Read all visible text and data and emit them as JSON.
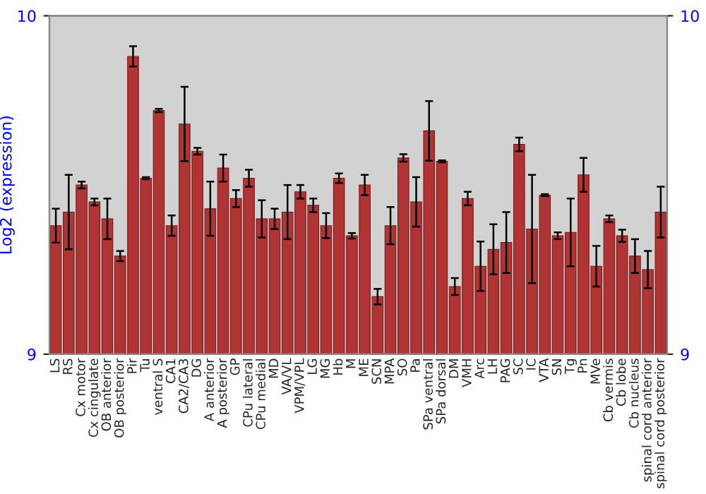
{
  "chart_data": {
    "type": "bar",
    "ylabel": "Log2 (expression)",
    "categories": [
      "LS",
      "RS",
      "Cx motor",
      "Cx cingulate",
      "OB anterior",
      "OB posterior",
      "Pir",
      "Tu",
      "ventral S",
      "CA1",
      "CA2/CA3",
      "DG",
      "A anterior",
      "A posterior",
      "GP",
      "CPu lateral",
      "CPu medial",
      "MD",
      "VA/VL",
      "VPM/VPL",
      "LG",
      "MG",
      "Hb",
      "M",
      "ME",
      "SCN",
      "MPA",
      "SO",
      "Pa",
      "SPa ventral",
      "SPa dorsal",
      "DM",
      "VMH",
      "Arc",
      "LH",
      "PAG",
      "SC",
      "IC",
      "VTA",
      "SN",
      "Tg",
      "Pn",
      "MVe",
      "Cb vermis",
      "Cb lobe",
      "Cb nucleus",
      "spinal cord anterior",
      "spinal cord posterior"
    ],
    "values": [
      9.38,
      9.42,
      9.5,
      9.45,
      9.4,
      9.29,
      9.88,
      9.52,
      9.72,
      9.38,
      9.68,
      9.6,
      9.43,
      9.55,
      9.46,
      9.52,
      9.4,
      9.4,
      9.42,
      9.48,
      9.44,
      9.38,
      9.52,
      9.35,
      9.5,
      9.17,
      9.38,
      9.58,
      9.45,
      9.66,
      9.57,
      9.2,
      9.46,
      9.26,
      9.31,
      9.33,
      9.62,
      9.37,
      9.47,
      9.35,
      9.36,
      9.53,
      9.26,
      9.4,
      9.35,
      9.29,
      9.25,
      9.42
    ],
    "errors": [
      0.05,
      0.11,
      0.01,
      0.01,
      0.06,
      0.015,
      0.03,
      0.003,
      0.005,
      0.03,
      0.11,
      0.01,
      0.08,
      0.04,
      0.025,
      0.025,
      0.055,
      0.03,
      0.08,
      0.02,
      0.02,
      0.037,
      0.014,
      0.008,
      0.03,
      0.023,
      0.055,
      0.011,
      0.073,
      0.088,
      0.003,
      0.025,
      0.02,
      0.073,
      0.074,
      0.09,
      0.02,
      0.16,
      0.003,
      0.01,
      0.1,
      0.05,
      0.06,
      0.01,
      0.018,
      0.05,
      0.055,
      0.075
    ],
    "color": "#b03434",
    "ylim": [
      9,
      10
    ],
    "yticks": [
      9,
      10
    ],
    "y2lim": [
      9,
      10
    ],
    "y2ticks": [
      9,
      10
    ],
    "grid": false,
    "legend": false
  }
}
